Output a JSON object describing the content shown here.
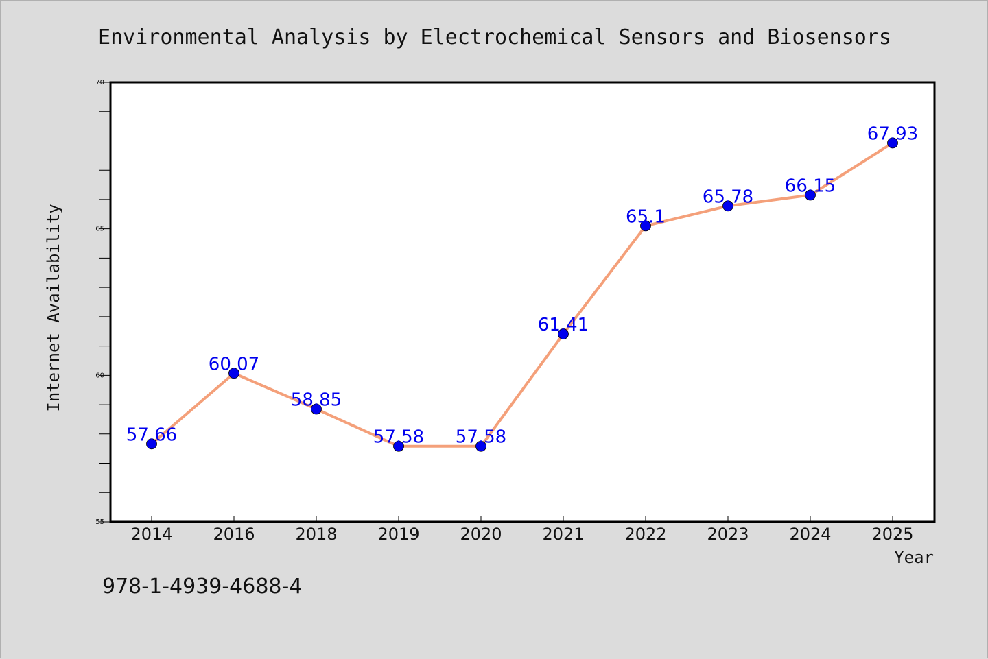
{
  "chart_data": {
    "type": "line",
    "title": "Environmental Analysis by Electrochemical Sensors and Biosensors",
    "xlabel": "Year",
    "ylabel": "Internet Availability",
    "categories": [
      "2014",
      "2016",
      "2018",
      "2019",
      "2020",
      "2021",
      "2022",
      "2023",
      "2024",
      "2025"
    ],
    "series": [
      {
        "values": [
          57.66,
          60.07,
          58.85,
          57.58,
          57.58,
          61.41,
          65.1,
          65.78,
          66.15,
          67.93
        ],
        "labels": [
          "57.66",
          "60.07",
          "58.85",
          "57.58",
          "57.58",
          "61.41",
          "65.1",
          "65.78",
          "66.15",
          "67.93"
        ],
        "line_color": "#f4a07a",
        "marker_color": "#0000ee",
        "label_color": "#0000ee"
      }
    ],
    "ylim": [
      55,
      70
    ],
    "yticks": [
      "55",
      "60",
      "65",
      "70"
    ],
    "grid": false,
    "legend": "none"
  },
  "footer": {
    "isbn": "978-1-4939-4688-4"
  }
}
